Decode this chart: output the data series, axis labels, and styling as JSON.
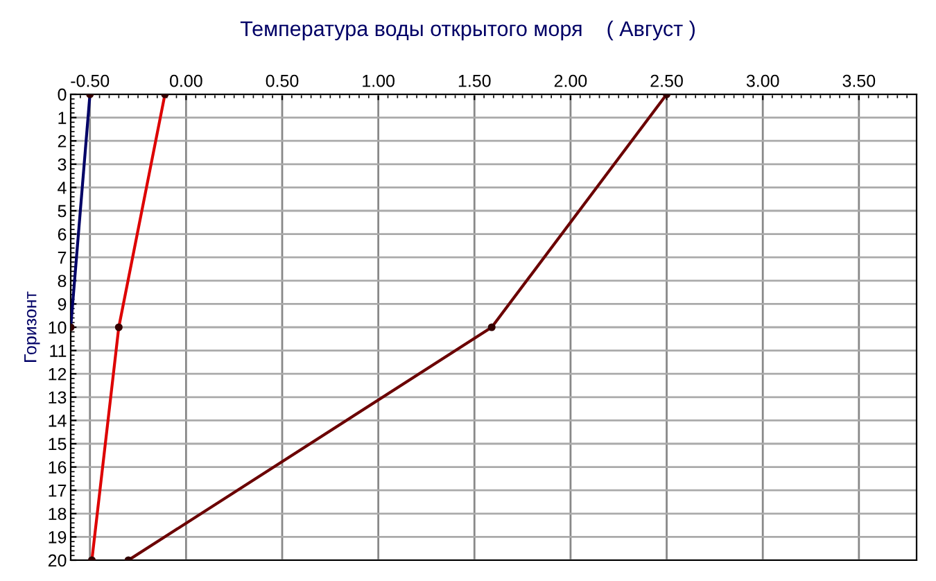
{
  "chart_data": {
    "type": "line",
    "title": "Температура воды открытого моря    ( Август )",
    "ylabel": "Горизонт",
    "series": [
      {
        "color": "#000066",
        "x": [
          -0.5,
          -0.6
        ],
        "values": [
          0,
          10
        ]
      },
      {
        "color": "#dd0000",
        "x": [
          -0.11,
          -0.35,
          -0.49
        ],
        "values": [
          0,
          10,
          20
        ]
      },
      {
        "color": "#6b0000",
        "x": [
          2.5,
          1.59,
          -0.3
        ],
        "values": [
          0,
          10,
          20
        ]
      }
    ],
    "xlim": [
      -0.6,
      3.8
    ],
    "xticks": [
      {
        "value": -0.5,
        "label": "-0.50"
      },
      {
        "value": 0,
        "label": "0.00"
      },
      {
        "value": 0.5,
        "label": "0.50"
      },
      {
        "value": 1,
        "label": "1.00"
      },
      {
        "value": 1.5,
        "label": "1.50"
      },
      {
        "value": 2,
        "label": "2.00"
      },
      {
        "value": 2.5,
        "label": "2.50"
      },
      {
        "value": 3,
        "label": "3.00"
      },
      {
        "value": 3.5,
        "label": "3.50"
      }
    ],
    "ylim": [
      20,
      0
    ],
    "yticks": [
      0,
      1,
      2,
      3,
      4,
      5,
      6,
      7,
      8,
      9,
      10,
      11,
      12,
      13,
      14,
      15,
      16,
      17,
      18,
      19,
      20
    ],
    "grid": true,
    "marker": "circle",
    "line_style": "solid"
  }
}
